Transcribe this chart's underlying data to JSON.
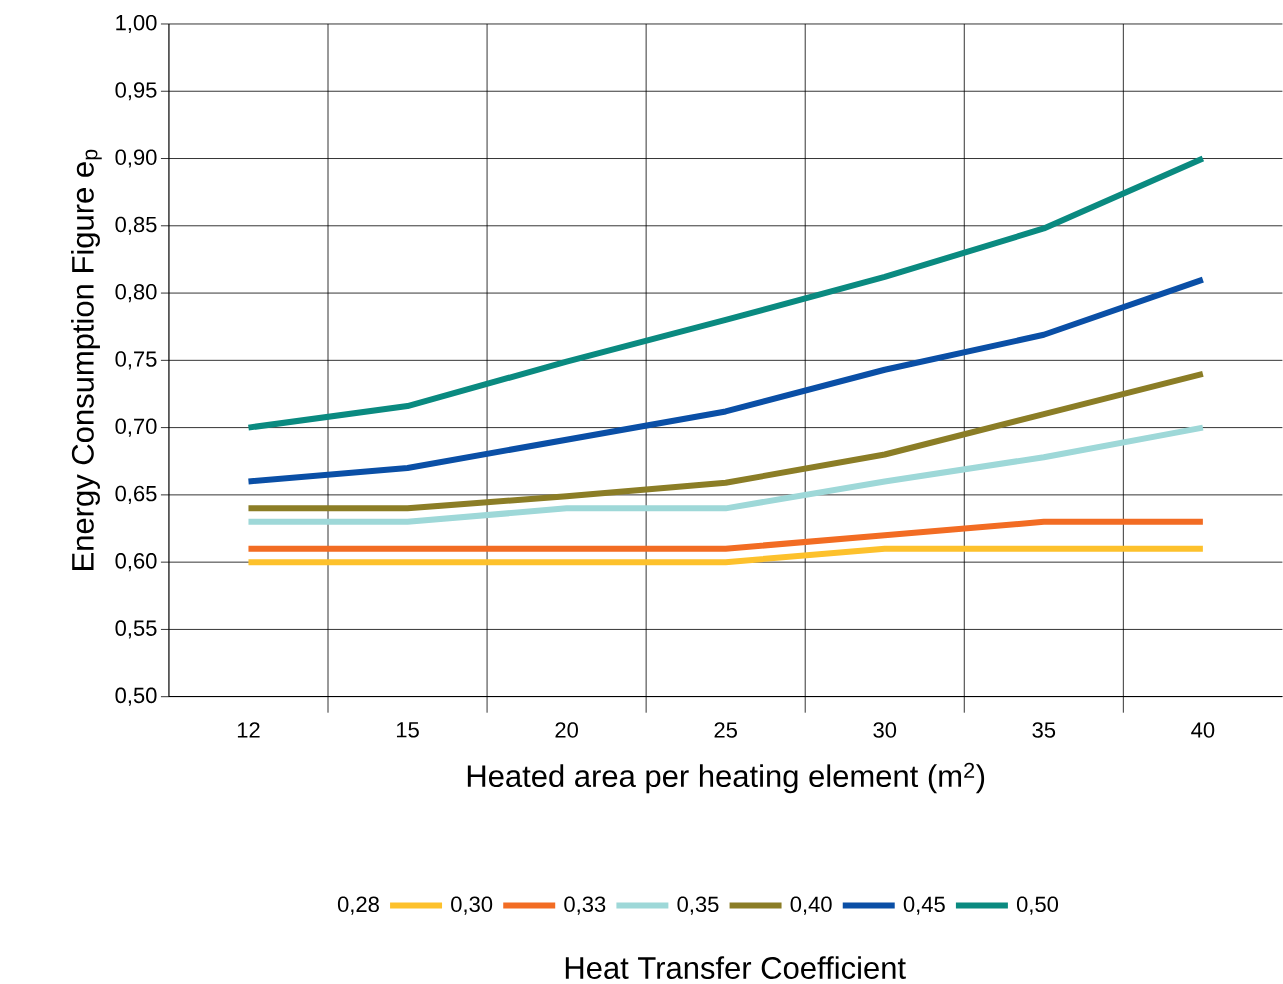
{
  "chart_data": {
    "type": "line",
    "xlabel": "Heated area per heating element (m$^{2}$)",
    "ylabel": "Energy Consumption Figure e$_{p}$",
    "legend_title": "Heat Transfer Coefficient",
    "categories": [
      "12",
      "15",
      "20",
      "25",
      "30",
      "35",
      "40"
    ],
    "series": [
      {
        "name": "0,28",
        "color": "#fdc12c",
        "values": [
          0.6,
          0.6,
          0.6,
          0.6,
          0.61,
          0.61,
          0.61
        ]
      },
      {
        "name": "0,30",
        "color": "#f26c23",
        "values": [
          0.61,
          0.61,
          0.61,
          0.61,
          0.62,
          0.63,
          0.63
        ]
      },
      {
        "name": "0,33",
        "color": "#9ed8d8",
        "values": [
          0.63,
          0.63,
          0.64,
          0.64,
          0.66,
          0.678,
          0.7
        ]
      },
      {
        "name": "0,35",
        "color": "#8b7d26",
        "values": [
          0.64,
          0.64,
          0.649,
          0.659,
          0.68,
          0.71,
          0.74
        ]
      },
      {
        "name": "0,40",
        "color": "#0a4fa6",
        "values": [
          0.66,
          0.67,
          0.691,
          0.712,
          0.743,
          0.769,
          0.81
        ]
      },
      {
        "name": "0,45",
        "color": "#0a8a80",
        "values": [
          0.7,
          0.716,
          0.749,
          0.78,
          0.812,
          0.848,
          0.9
        ]
      }
    ],
    "annotations": [
      "0,50"
    ],
    "ylim": [
      0.5,
      1.0
    ],
    "yticks": [
      {
        "value": 0.5,
        "label": "0,50"
      },
      {
        "value": 0.55,
        "label": "0,55"
      },
      {
        "value": 0.6,
        "label": "0,60"
      },
      {
        "value": 0.65,
        "label": "0,65"
      },
      {
        "value": 0.7,
        "label": "0,70"
      },
      {
        "value": 0.75,
        "label": "0,75"
      },
      {
        "value": 0.8,
        "label": "0,80"
      },
      {
        "value": 0.85,
        "label": "0,85"
      },
      {
        "value": 0.9,
        "label": "0,90"
      },
      {
        "value": 0.95,
        "label": "0,95"
      },
      {
        "value": 1.0,
        "label": "1,00"
      }
    ],
    "grid": true,
    "legend": "bottom",
    "marker": "none",
    "line_style": "solid"
  }
}
